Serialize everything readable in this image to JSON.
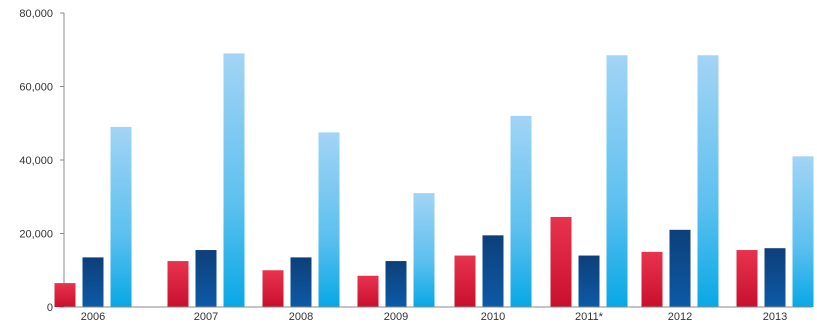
{
  "chart_data": {
    "type": "bar",
    "title": "",
    "xlabel": "",
    "ylabel": "",
    "ylim": [
      0,
      80000
    ],
    "yticks": [
      0,
      20000,
      40000,
      60000,
      80000
    ],
    "ytick_labels": [
      "0",
      "20,000",
      "40,000",
      "60,000",
      "80,000"
    ],
    "grid": false,
    "categories": [
      "2006",
      "2007",
      "2008",
      "2009",
      "2010",
      "2011*",
      "2012",
      "2013"
    ],
    "series": [
      {
        "values": [
          6500,
          12500,
          10000,
          8500,
          14000,
          24500,
          15000,
          15500
        ]
      },
      {
        "values": [
          13500,
          15500,
          13500,
          12500,
          19500,
          14000,
          21000,
          16000
        ]
      },
      {
        "values": [
          49000,
          69000,
          47500,
          31000,
          52000,
          68500,
          68500,
          41000
        ]
      }
    ],
    "colors": {
      "series_1": "#d8193a",
      "series_2": "#0b4a8a",
      "series_3_top": "#9fd3f4",
      "series_3_bottom": "#0aa9e6",
      "axis": "#888888"
    }
  }
}
